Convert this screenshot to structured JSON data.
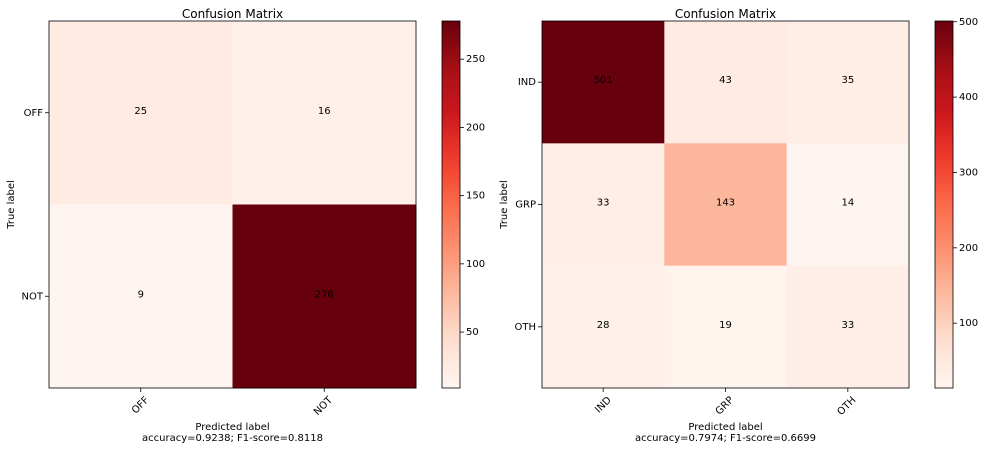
{
  "chart_data": [
    {
      "type": "heatmap",
      "title": "Confusion Matrix",
      "xlabel": "Predicted label",
      "ylabel": "True label",
      "footer": "accuracy=0.9238; F1-score=0.8118",
      "x_categories": [
        "OFF",
        "NOT"
      ],
      "y_categories": [
        "OFF",
        "NOT"
      ],
      "values": [
        [
          25,
          16
        ],
        [
          9,
          278
        ]
      ],
      "colormap": "Reds",
      "colorbar": {
        "range": [
          9,
          278
        ],
        "ticks": [
          50,
          100,
          150,
          200,
          250
        ]
      }
    },
    {
      "type": "heatmap",
      "title": "Confusion Matrix",
      "xlabel": "Predicted label",
      "ylabel": "True label",
      "footer": "accuracy=0.7974; F1-score=0.6699",
      "x_categories": [
        "IND",
        "GRP",
        "OTH"
      ],
      "y_categories": [
        "IND",
        "GRP",
        "OTH"
      ],
      "values": [
        [
          501,
          43,
          35
        ],
        [
          33,
          143,
          14
        ],
        [
          28,
          19,
          33
        ]
      ],
      "colormap": "Reds",
      "colorbar": {
        "range": [
          14,
          501
        ],
        "ticks": [
          100,
          200,
          300,
          400,
          500
        ]
      }
    }
  ]
}
